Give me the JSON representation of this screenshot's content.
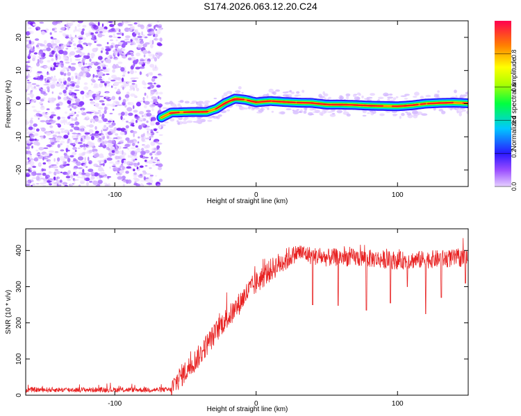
{
  "title": "S174.2026.063.12.20.C24",
  "chart_data": [
    {
      "type": "heatmap",
      "name": "spectrogram",
      "xlabel": "Height of straight line (km)",
      "ylabel": "Frequency (Hz)",
      "xlim": [
        -163,
        150
      ],
      "ylim": [
        -25,
        25
      ],
      "xticks": [
        -100,
        0,
        100
      ],
      "yticks": [
        20,
        10,
        0,
        -10,
        -20
      ],
      "noise_region_x": [
        -163,
        -67
      ],
      "signal_region_x": [
        -67,
        150
      ],
      "signal_center_hz": {
        "x": [
          -67,
          -60,
          -45,
          -35,
          -28,
          -22,
          -15,
          -8,
          0,
          10,
          20,
          30,
          40,
          50,
          60,
          70,
          80,
          90,
          100,
          110,
          120,
          130,
          140,
          150
        ],
        "y": [
          -4.2,
          -2.7,
          -2.5,
          -2.5,
          -1.5,
          0.2,
          1.5,
          1.2,
          0.4,
          0.8,
          0.5,
          0.3,
          0.2,
          -0.3,
          -0.3,
          -0.4,
          -0.6,
          -0.7,
          -0.8,
          -0.5,
          0.0,
          0.2,
          0.3,
          0.1
        ]
      },
      "colorbar": {
        "label": "Normalized spectral amplitude",
        "range": [
          0,
          1
        ],
        "ticks": [
          "0.0",
          "0.2",
          "0.4",
          "0.6",
          "0.8"
        ]
      }
    },
    {
      "type": "line",
      "name": "snr",
      "xlabel": "Height of straight line (km)",
      "ylabel": "SNR (10 * v/v)",
      "xlim": [
        -163,
        150
      ],
      "ylim": [
        0,
        460
      ],
      "xticks": [
        -100,
        0,
        100
      ],
      "yticks": [
        0,
        100,
        200,
        300,
        400
      ],
      "color": "#e82222",
      "envelope": {
        "x": [
          -163,
          -60,
          -55,
          -50,
          -45,
          -40,
          -35,
          -30,
          -25,
          -20,
          -15,
          -10,
          -5,
          0,
          5,
          10,
          15,
          20,
          25,
          30,
          40,
          50,
          60,
          80,
          100,
          120,
          150
        ],
        "y": [
          15,
          15,
          45,
          65,
          88,
          110,
          140,
          165,
          195,
          215,
          235,
          265,
          290,
          310,
          328,
          345,
          360,
          372,
          385,
          395,
          385,
          380,
          382,
          378,
          372,
          375,
          380
        ]
      },
      "dips": {
        "x": [
          40,
          58,
          78,
          95,
          107,
          120,
          131,
          148
        ],
        "y": [
          250,
          248,
          235,
          255,
          300,
          225,
          270,
          310
        ]
      }
    }
  ]
}
